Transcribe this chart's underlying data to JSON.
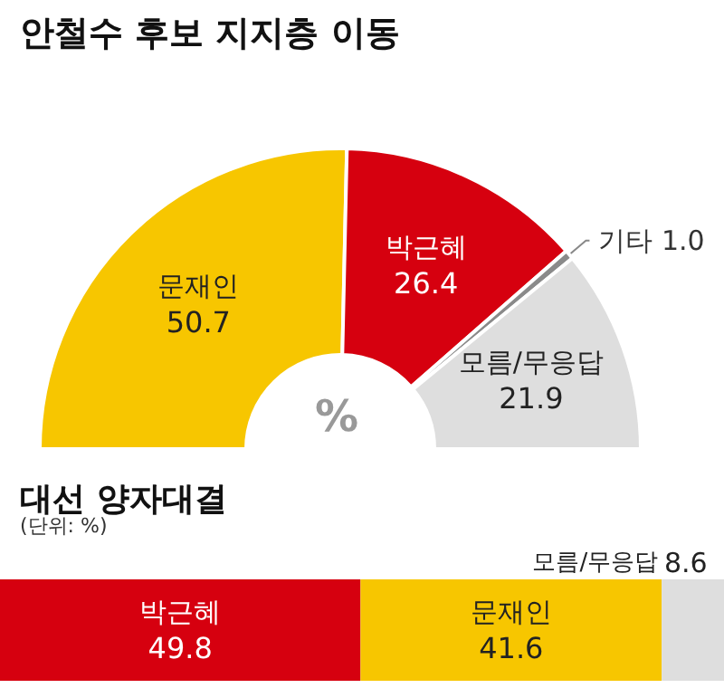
{
  "chart_data": [
    {
      "type": "donut",
      "title": "안철수 후보 지지층 이동",
      "categories": [
        "문재인",
        "박근혜",
        "기타",
        "모름/무응답"
      ],
      "values": [
        50.7,
        26.4,
        1.0,
        21.9
      ],
      "value_labels": [
        "50.7",
        "26.4",
        "1.0",
        "21.9"
      ],
      "colors": [
        "#f7c600",
        "#d6000f",
        "#8a8a8a",
        "#dedede"
      ],
      "annotations": [
        "%"
      ]
    },
    {
      "type": "bar",
      "title": "대선 양자대결",
      "subtitle": "(단위: %)",
      "orientation": "horizontal",
      "stacked": true,
      "categories": [
        null
      ],
      "data_labels": true,
      "series": [
        {
          "name": "박근혜",
          "color": "#d6000f",
          "values": [
            49.8
          ]
        },
        {
          "name": "문재인",
          "color": "#f7c600",
          "values": [
            41.6
          ]
        },
        {
          "name": "모름/무응답",
          "color": "#dedede",
          "values": [
            8.6
          ]
        }
      ]
    }
  ]
}
